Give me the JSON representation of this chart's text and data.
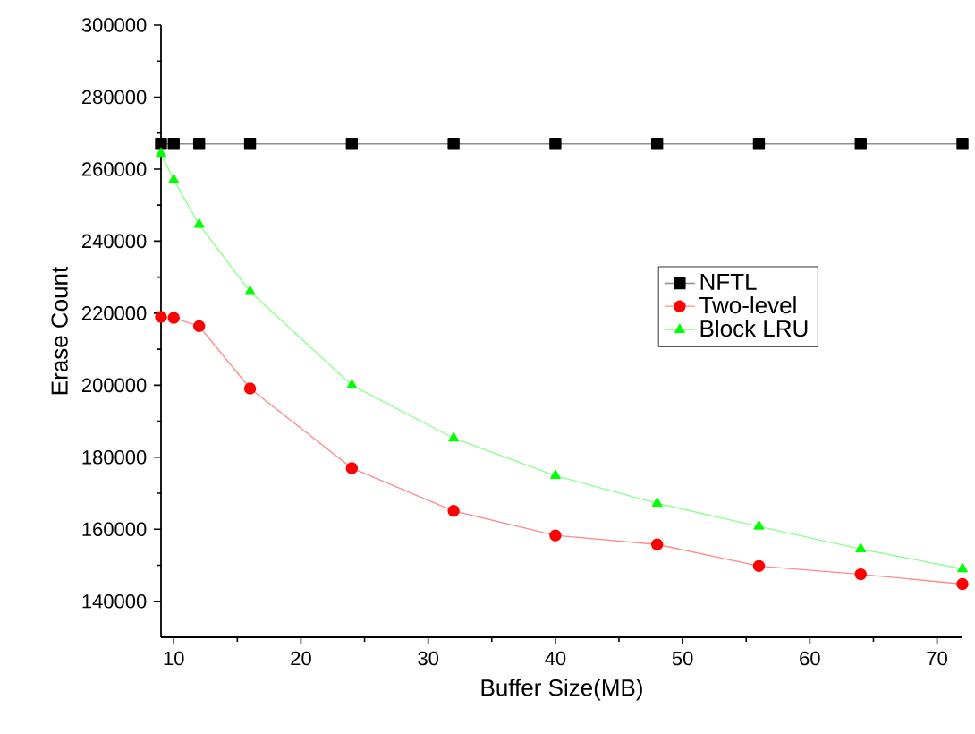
{
  "chart_data": {
    "type": "line",
    "xlabel": "Buffer Size(MB)",
    "ylabel": "Erase Count",
    "x": [
      9,
      10,
      12,
      16,
      24,
      32,
      40,
      48,
      56,
      64,
      72
    ],
    "series": [
      {
        "name": "NFTL",
        "color": "#000000",
        "marker": "square",
        "values": [
          267000,
          267000,
          267000,
          267000,
          267000,
          267000,
          267000,
          267000,
          267000,
          267000,
          267000
        ]
      },
      {
        "name": "Two-level",
        "color": "#ff0000",
        "marker": "circle",
        "values": [
          219000,
          218700,
          216400,
          199100,
          177000,
          165100,
          158300,
          155800,
          149800,
          147500,
          144800
        ]
      },
      {
        "name": "Block LRU",
        "color": "#00ff00",
        "marker": "triangle",
        "values": [
          264300,
          257000,
          244600,
          226000,
          200000,
          185300,
          174900,
          167200,
          160800,
          154500,
          149000
        ]
      }
    ],
    "xlim": [
      9,
      72
    ],
    "ylim": [
      130000,
      300000
    ],
    "xticks": [
      10,
      20,
      30,
      40,
      50,
      60,
      70
    ],
    "yticks": [
      140000,
      160000,
      180000,
      200000,
      220000,
      240000,
      260000,
      280000,
      300000
    ],
    "grid": false,
    "legend": "right",
    "line_style": "solid"
  }
}
